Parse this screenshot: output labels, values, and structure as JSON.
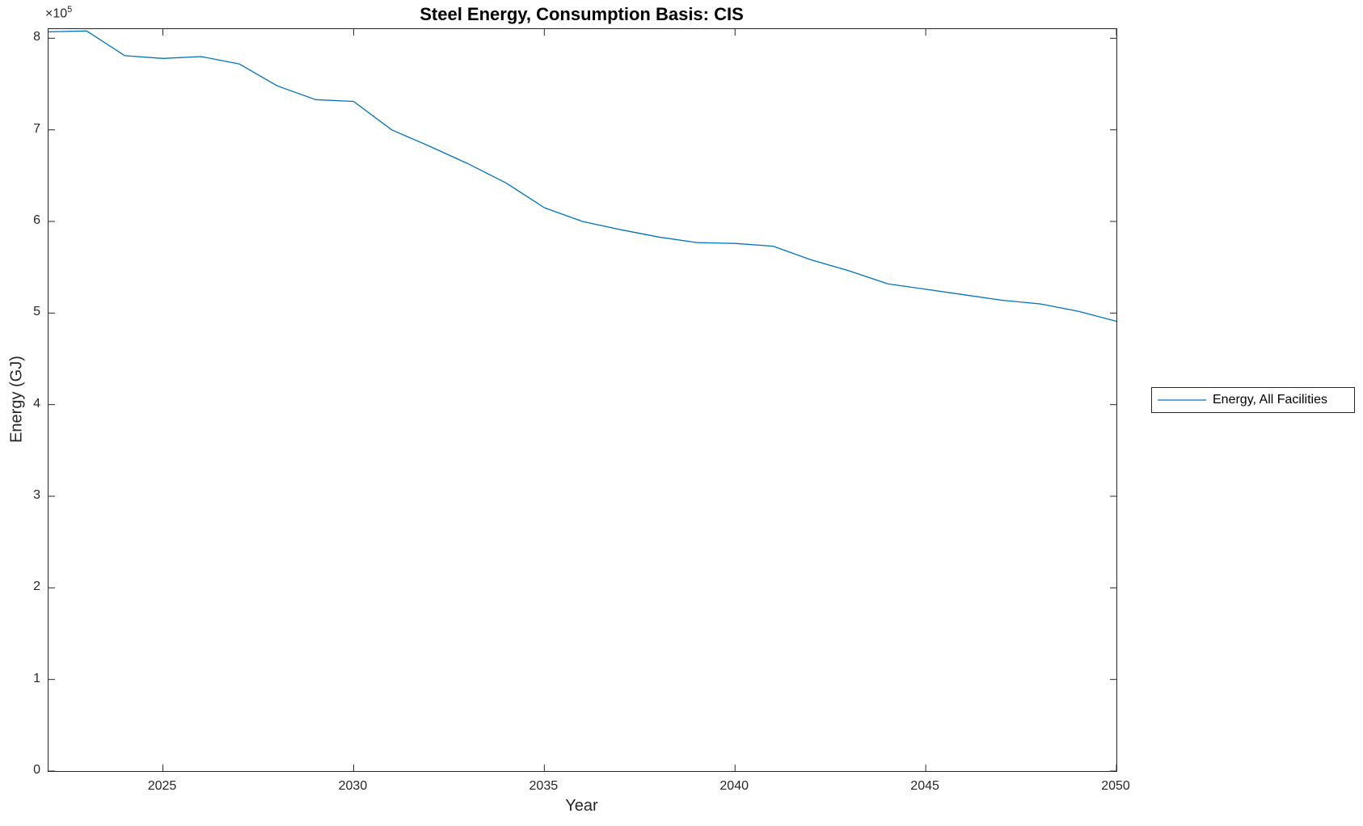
{
  "title": "Steel Energy, Consumption Basis: CIS",
  "x_axis": {
    "label": "Year"
  },
  "y_axis": {
    "label": "Energy (GJ)",
    "multiplier_base": "×10",
    "multiplier_exp": "5"
  },
  "legend": {
    "entries": [
      {
        "label": "Energy, All Facilities",
        "color": "#0072BD"
      }
    ]
  },
  "colors": {
    "line": "#0072BD",
    "axis": "#262626",
    "background": "#ffffff"
  },
  "chart_data": {
    "type": "line",
    "title": "Steel Energy, Consumption Basis: CIS",
    "xlabel": "Year",
    "ylabel": "Energy (GJ)",
    "x": [
      2022,
      2023,
      2024,
      2025,
      2026,
      2027,
      2028,
      2029,
      2030,
      2031,
      2032,
      2033,
      2034,
      2035,
      2036,
      2037,
      2038,
      2039,
      2040,
      2041,
      2042,
      2043,
      2044,
      2045,
      2046,
      2047,
      2048,
      2049,
      2050
    ],
    "series": [
      {
        "name": "Energy, All Facilities",
        "color": "#0072BD",
        "values": [
          807000,
          808000,
          781000,
          778000,
          780000,
          772000,
          748000,
          733000,
          731000,
          700000,
          682000,
          663000,
          642000,
          615000,
          600000,
          591000,
          583000,
          577000,
          576000,
          573000,
          558000,
          546000,
          532000,
          526000,
          520000,
          514000,
          510000,
          502000,
          491000
        ]
      }
    ],
    "xlim": [
      2022,
      2050
    ],
    "ylim": [
      0,
      810000
    ],
    "x_ticks": {
      "values": [
        2025,
        2030,
        2035,
        2040,
        2045,
        2050
      ],
      "labels": [
        "2025",
        "2030",
        "2035",
        "2040",
        "2045",
        "2050"
      ]
    },
    "y_ticks": {
      "values": [
        0,
        100000,
        200000,
        300000,
        400000,
        500000,
        600000,
        700000,
        800000
      ],
      "labels": [
        "0",
        "1",
        "2",
        "3",
        "4",
        "5",
        "6",
        "7",
        "8"
      ],
      "multiplier": "×10^5"
    },
    "grid": false,
    "legend_position": "right-outside"
  }
}
